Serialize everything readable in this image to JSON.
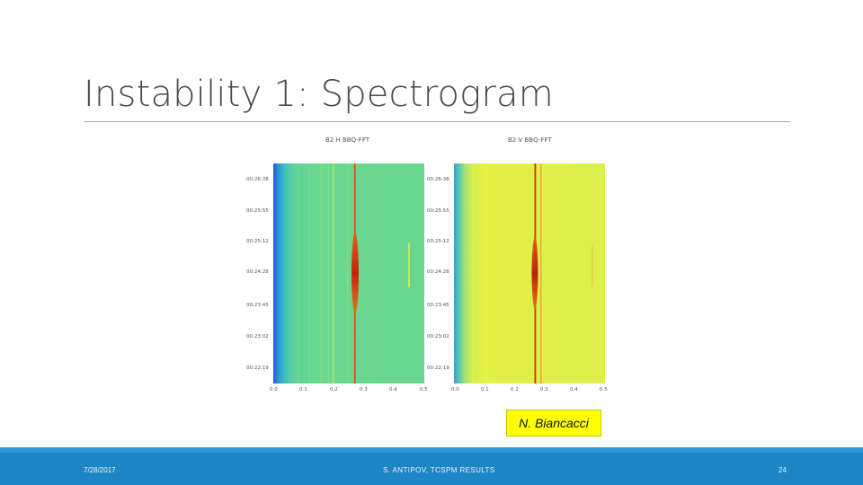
{
  "slide": {
    "title": "Instability 1: Spectrogram",
    "attribution": "N. Biancacci"
  },
  "footer": {
    "date": "7/28/2017",
    "center": "S. ANTIPOV, TCSPM RESULTS",
    "page": "24"
  },
  "figure": {
    "panels": [
      {
        "title": "B2 H BBQ-FFT",
        "yticks": [
          "00:26:38",
          "00:25:55",
          "00:25:12",
          "00:24:28",
          "00:23:45",
          "00:23:02",
          "00:22:19"
        ],
        "xticks": [
          "0.0",
          "0.1",
          "0.2",
          "0.3",
          "0.4",
          "0.5"
        ]
      },
      {
        "title": "B2 V BBQ-FFT",
        "yticks": [
          "00:26:38",
          "00:25:55",
          "00:25:12",
          "00:24:28",
          "00:23:45",
          "00:23:02",
          "00:22:19"
        ],
        "xticks": [
          "0.0",
          "0.1",
          "0.2",
          "0.3",
          "0.4",
          "0.5"
        ]
      }
    ]
  }
}
